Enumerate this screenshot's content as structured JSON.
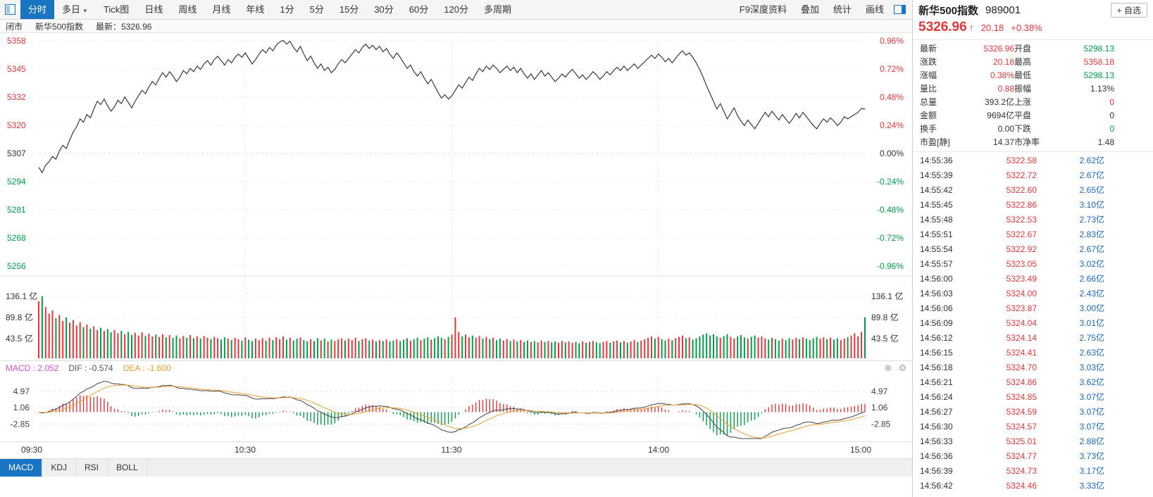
{
  "colors": {
    "up": "#e83538",
    "down": "#00a049",
    "volume_text": "#1668c7",
    "accent_blue": "#1a74c4",
    "dea_line": "#e8a030",
    "macd_label": "#d94fd9"
  },
  "toolbar": {
    "caret_glyph": "▼",
    "tabs": [
      {
        "label": "分时",
        "name": "tab-fenshi",
        "active": true
      },
      {
        "label": "多日",
        "name": "tab-duori",
        "caret": true
      },
      {
        "label": "Tick图",
        "name": "tab-tick"
      },
      {
        "label": "日线",
        "name": "tab-daily"
      },
      {
        "label": "周线",
        "name": "tab-weekly"
      },
      {
        "label": "月线",
        "name": "tab-monthly"
      },
      {
        "label": "年线",
        "name": "tab-yearly"
      },
      {
        "label": "1分",
        "name": "tab-1min"
      },
      {
        "label": "5分",
        "name": "tab-5min"
      },
      {
        "label": "15分",
        "name": "tab-15min"
      },
      {
        "label": "30分",
        "name": "tab-30min"
      },
      {
        "label": "60分",
        "name": "tab-60min"
      },
      {
        "label": "120分",
        "name": "tab-120min"
      },
      {
        "label": "多周期",
        "name": "tab-multi-period"
      }
    ],
    "right_items": [
      {
        "label": "F9深度资料",
        "name": "f9-depth-info-button"
      },
      {
        "label": "叠加",
        "name": "overlay-button"
      },
      {
        "label": "统计",
        "name": "statistics-button"
      },
      {
        "label": "画线",
        "name": "draw-line-button"
      }
    ]
  },
  "info_bar": {
    "market_status": "闭市",
    "name": "新华500指数",
    "latest_label": "最新：",
    "latest_value": "5326.96"
  },
  "panel": {
    "title": "新华500指数",
    "code": "989001",
    "add_watchlist": "+ 自选",
    "price": "5326.96",
    "arrow": "↑",
    "change": "20.18",
    "change_pct": "+0.38%",
    "stats": [
      {
        "l1": "最新",
        "v1": "5326.96",
        "c1": "red",
        "l2": "开盘",
        "v2": "5298.13",
        "c2": "green"
      },
      {
        "l1": "涨跌",
        "v1": "20.18",
        "c1": "red",
        "l2": "最高",
        "v2": "5358.18",
        "c2": "red"
      },
      {
        "l1": "涨幅",
        "v1": "0.38%",
        "c1": "red",
        "l2": "最低",
        "v2": "5298.13",
        "c2": "green"
      },
      {
        "l1": "量比",
        "v1": "0.88",
        "c1": "red",
        "l2": "振幅",
        "v2": "1.13%",
        "c2": "black"
      },
      {
        "l1": "总量",
        "v1": "393.2亿",
        "c1": "black",
        "l2": "上涨",
        "v2": "0",
        "c2": "red"
      },
      {
        "l1": "金额",
        "v1": "9694亿",
        "c1": "black",
        "l2": "平盘",
        "v2": "0",
        "c2": "black"
      },
      {
        "l1": "换手",
        "v1": "0.00",
        "c1": "black",
        "l2": "下跌",
        "v2": "0",
        "c2": "green"
      },
      {
        "l1": "市盈[静]",
        "v1": "14.37",
        "c1": "black",
        "l2": "市净率",
        "v2": "1.48",
        "c2": "black"
      }
    ],
    "ticks": [
      {
        "time": "14:55:36",
        "price": "5322.58",
        "vol": "2.62亿"
      },
      {
        "time": "14:55:39",
        "price": "5322.72",
        "vol": "2.67亿"
      },
      {
        "time": "14:55:42",
        "price": "5322.60",
        "vol": "2.65亿"
      },
      {
        "time": "14:55:45",
        "price": "5322.86",
        "vol": "3.10亿"
      },
      {
        "time": "14:55:48",
        "price": "5322.53",
        "vol": "2.73亿"
      },
      {
        "time": "14:55:51",
        "price": "5322.67",
        "vol": "2.83亿"
      },
      {
        "time": "14:55:54",
        "price": "5322.92",
        "vol": "2.67亿"
      },
      {
        "time": "14:55:57",
        "price": "5323.05",
        "vol": "3.02亿"
      },
      {
        "time": "14:56:00",
        "price": "5323.49",
        "vol": "2.66亿"
      },
      {
        "time": "14:56:03",
        "price": "5324.00",
        "vol": "2.43亿"
      },
      {
        "time": "14:56:06",
        "price": "5323.87",
        "vol": "3.00亿"
      },
      {
        "time": "14:56:09",
        "price": "5324.04",
        "vol": "3.01亿"
      },
      {
        "time": "14:56:12",
        "price": "5324.14",
        "vol": "2.75亿"
      },
      {
        "time": "14:56:15",
        "price": "5324.41",
        "vol": "2.63亿"
      },
      {
        "time": "14:56:18",
        "price": "5324.70",
        "vol": "3.03亿"
      },
      {
        "time": "14:56:21",
        "price": "5324.86",
        "vol": "3.62亿"
      },
      {
        "time": "14:56:24",
        "price": "5324.85",
        "vol": "3.07亿"
      },
      {
        "time": "14:56:27",
        "price": "5324.59",
        "vol": "3.07亿"
      },
      {
        "time": "14:56:30",
        "price": "5324.57",
        "vol": "3.07亿"
      },
      {
        "time": "14:56:33",
        "price": "5325.01",
        "vol": "2.88亿"
      },
      {
        "time": "14:56:36",
        "price": "5324.77",
        "vol": "3.73亿"
      },
      {
        "time": "14:56:39",
        "price": "5324.73",
        "vol": "3.17亿"
      },
      {
        "time": "14:56:42",
        "price": "5324.46",
        "vol": "3.33亿"
      }
    ]
  },
  "bottom_tabs": [
    {
      "label": "MACD",
      "name": "tab-macd",
      "active": true
    },
    {
      "label": "KDJ",
      "name": "tab-kdj"
    },
    {
      "label": "RSI",
      "name": "tab-rsi"
    },
    {
      "label": "BOLL",
      "name": "tab-boll"
    }
  ],
  "chart_data": {
    "type": "line",
    "title": "新华500指数 989001 分时",
    "x_axis": {
      "labels": [
        "09:30",
        "10:30",
        "11:30",
        "14:00",
        "15:00"
      ],
      "minutes_total": 240
    },
    "y_axis_price": {
      "labels_left": [
        "5358",
        "5345",
        "5332",
        "5320",
        "5307",
        "5294",
        "5281",
        "5268",
        "5256"
      ],
      "labels_right": [
        "0.96%",
        "0.72%",
        "0.48%",
        "0.24%",
        "0.00%",
        "-0.24%",
        "-0.48%",
        "-0.72%",
        "-0.96%"
      ],
      "range": [
        5255.6,
        5358.0
      ],
      "prev_close": 5306.78
    },
    "volume_panel": {
      "labels": [
        "136.1 亿",
        "89.8 亿",
        "43.5 亿"
      ],
      "values": [
        136.1,
        89.8,
        43.5
      ],
      "unit": "亿"
    },
    "macd_panel": {
      "macd_label": "MACD : 2.052",
      "dif_label": "DIF : -0.574",
      "dea_label": "DEA : -1.600",
      "macd": 2.052,
      "dif": -0.574,
      "dea": -1.6,
      "labels": [
        "4.97",
        "1.06",
        "-2.85"
      ],
      "values": [
        4.97,
        1.06,
        -2.85
      ],
      "close_glyph": "⊗",
      "gear_glyph": "⚙"
    },
    "series": [
      {
        "name": "price",
        "values": [
          5300.5,
          5298.1,
          5301.5,
          5303.0,
          5305.5,
          5304.2,
          5308.0,
          5310.5,
          5309.0,
          5313.0,
          5316.5,
          5319.0,
          5322.5,
          5321.0,
          5324.5,
          5323.0,
          5327.0,
          5330.5,
          5329.0,
          5331.5,
          5328.5,
          5326.0,
          5328.0,
          5331.0,
          5329.5,
          5332.5,
          5330.0,
          5327.5,
          5330.5,
          5333.0,
          5335.5,
          5334.0,
          5337.0,
          5339.5,
          5338.0,
          5341.0,
          5343.5,
          5341.5,
          5344.0,
          5342.0,
          5339.5,
          5341.5,
          5344.5,
          5343.0,
          5345.5,
          5344.0,
          5346.5,
          5345.0,
          5347.5,
          5349.0,
          5347.0,
          5349.5,
          5351.0,
          5349.0,
          5347.0,
          5349.5,
          5348.0,
          5350.5,
          5352.0,
          5350.5,
          5352.5,
          5350.0,
          5347.5,
          5349.5,
          5352.0,
          5354.0,
          5352.5,
          5355.0,
          5353.5,
          5356.0,
          5357.5,
          5358.2,
          5356.5,
          5357.8,
          5355.0,
          5353.0,
          5355.5,
          5352.0,
          5349.0,
          5351.0,
          5348.0,
          5345.5,
          5347.5,
          5344.5,
          5346.0,
          5343.5,
          5345.0,
          5347.5,
          5349.5,
          5348.0,
          5350.0,
          5352.0,
          5354.0,
          5352.5,
          5355.0,
          5356.5,
          5354.5,
          5356.0,
          5354.0,
          5355.5,
          5353.0,
          5354.5,
          5352.0,
          5350.0,
          5352.5,
          5350.5,
          5348.0,
          5345.5,
          5347.0,
          5344.0,
          5342.0,
          5344.0,
          5341.0,
          5338.5,
          5340.5,
          5337.5,
          5334.5,
          5332.0,
          5333.5,
          5331.5,
          5333.0,
          5335.5,
          5338.0,
          5336.5,
          5339.0,
          5341.5,
          5340.0,
          5343.0,
          5345.5,
          5344.0,
          5346.5,
          5345.0,
          5347.0,
          5345.5,
          5343.5,
          5345.0,
          5346.5,
          5344.5,
          5346.0,
          5343.5,
          5345.5,
          5343.0,
          5341.0,
          5343.0,
          5340.5,
          5342.5,
          5344.5,
          5342.0,
          5343.5,
          5341.5,
          5339.5,
          5341.0,
          5343.0,
          5341.5,
          5343.5,
          5345.0,
          5343.0,
          5341.0,
          5342.5,
          5340.5,
          5342.0,
          5344.0,
          5342.5,
          5340.5,
          5342.0,
          5344.0,
          5342.5,
          5344.5,
          5346.0,
          5344.5,
          5346.5,
          5344.5,
          5346.0,
          5347.5,
          5345.5,
          5347.0,
          5348.5,
          5350.0,
          5351.5,
          5350.0,
          5352.0,
          5350.5,
          5348.5,
          5350.0,
          5348.0,
          5350.0,
          5352.0,
          5353.5,
          5351.5,
          5352.5,
          5350.5,
          5348.0,
          5345.0,
          5341.5,
          5337.5,
          5334.0,
          5330.5,
          5327.0,
          5329.5,
          5326.0,
          5322.5,
          5325.0,
          5327.5,
          5324.0,
          5321.5,
          5319.5,
          5322.0,
          5320.0,
          5318.0,
          5320.5,
          5323.0,
          5325.5,
          5323.5,
          5326.0,
          5324.0,
          5322.0,
          5324.5,
          5322.5,
          5320.5,
          5322.5,
          5325.0,
          5323.0,
          5325.5,
          5323.5,
          5321.5,
          5319.5,
          5318.0,
          5320.5,
          5322.5,
          5321.0,
          5323.0,
          5321.5,
          5319.5,
          5321.0,
          5323.5,
          5322.5,
          5323.5,
          5324.5,
          5325.5,
          5327.3,
          5326.96
        ]
      },
      {
        "name": "volume",
        "values": [
          125,
          136.1,
          112,
          98,
          105,
          88,
          95,
          82,
          90,
          78,
          84,
          72,
          79,
          68,
          74,
          65,
          70,
          62,
          67,
          60,
          64,
          57,
          62,
          55,
          60,
          53,
          58,
          51,
          56,
          50,
          57,
          49,
          54,
          48,
          52,
          47,
          53,
          46,
          51,
          45,
          50,
          44,
          49,
          45,
          51,
          44,
          48,
          43,
          49,
          45,
          42,
          47,
          44,
          41,
          46,
          43,
          40,
          45,
          42,
          39,
          46,
          41,
          38,
          43,
          40,
          44,
          39,
          45,
          40,
          46,
          42,
          48,
          41,
          45,
          39,
          43,
          46,
          40,
          37,
          42,
          38,
          44,
          39,
          43,
          37,
          41,
          38,
          42,
          44,
          39,
          43,
          40,
          45,
          38,
          42,
          44,
          39,
          41,
          37,
          40,
          38,
          41,
          37,
          39,
          42,
          38,
          41,
          44,
          39,
          42,
          45,
          40,
          43,
          46,
          41,
          44,
          48,
          45,
          42,
          47,
          52,
          89.8,
          58,
          48,
          52,
          46,
          50,
          45,
          49,
          43,
          47,
          42,
          45,
          40,
          43,
          39,
          42,
          38,
          41,
          37,
          40,
          36,
          39,
          36,
          38,
          35,
          39,
          36,
          38,
          35,
          37,
          34,
          38,
          35,
          37,
          34,
          36,
          33,
          37,
          34,
          36,
          38,
          35,
          33,
          36,
          38,
          34,
          37,
          39,
          35,
          38,
          34,
          37,
          40,
          36,
          39,
          42,
          45,
          48,
          43,
          47,
          42,
          39,
          43,
          40,
          44,
          47,
          50,
          44,
          46,
          41,
          44,
          48,
          52,
          55,
          50,
          53,
          48,
          45,
          49,
          53,
          47,
          44,
          48,
          51,
          46,
          43,
          47,
          50,
          45,
          48,
          44,
          41,
          45,
          42,
          39,
          43,
          40,
          44,
          41,
          45,
          42,
          46,
          43,
          40,
          44,
          47,
          43,
          46,
          42,
          45,
          41,
          44,
          40,
          43,
          46,
          50,
          55,
          48,
          58,
          90
        ]
      }
    ]
  }
}
